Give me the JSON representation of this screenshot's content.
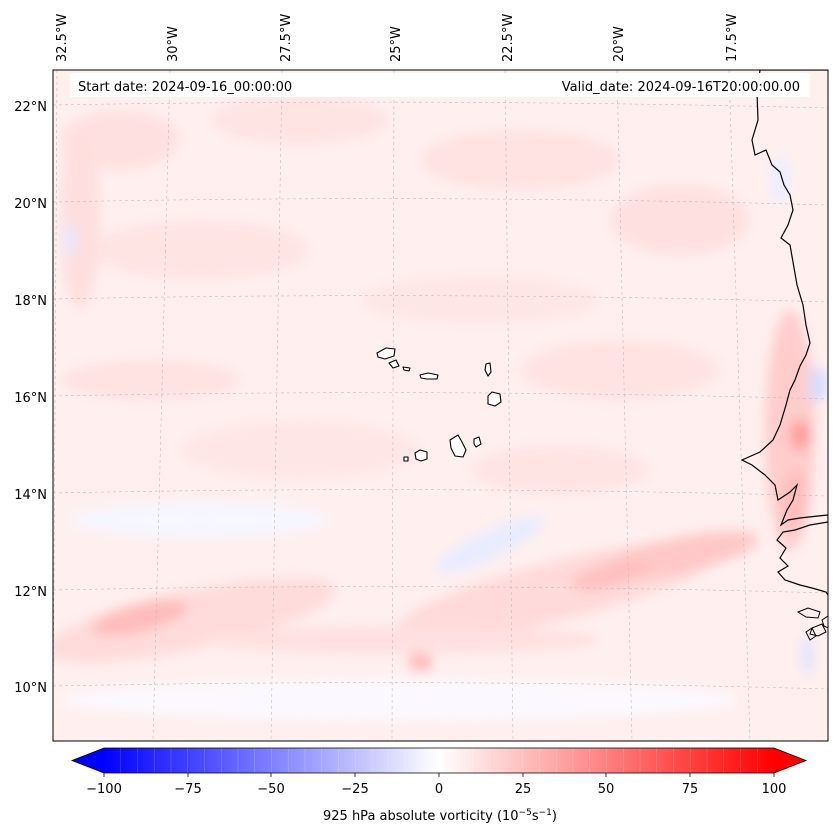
{
  "map": {
    "start_date": "Start date: 2024-09-16_00:00:00",
    "valid_date": "Valid_date: 2024-09-16T20:00:00.00",
    "lon_labels": [
      "32.5°W",
      "30°W",
      "27.5°W",
      "25°W",
      "22.5°W",
      "20°W",
      "17.5°W"
    ],
    "lat_labels": [
      "22°N",
      "20°N",
      "18°N",
      "16°N",
      "14°N",
      "12°N",
      "10°N"
    ],
    "colorbar": {
      "ticks": [
        "−100",
        "−75",
        "−50",
        "−25",
        "0",
        "25",
        "50",
        "75",
        "100"
      ],
      "label_main": "925 hPa absolute vorticity (10",
      "label_exp1": "−5",
      "label_mid": "s",
      "label_exp2": "−1",
      "label_end": ")",
      "min_color": "#0000ff",
      "mid_color": "#ffffff",
      "max_color": "#ff0000"
    }
  }
}
